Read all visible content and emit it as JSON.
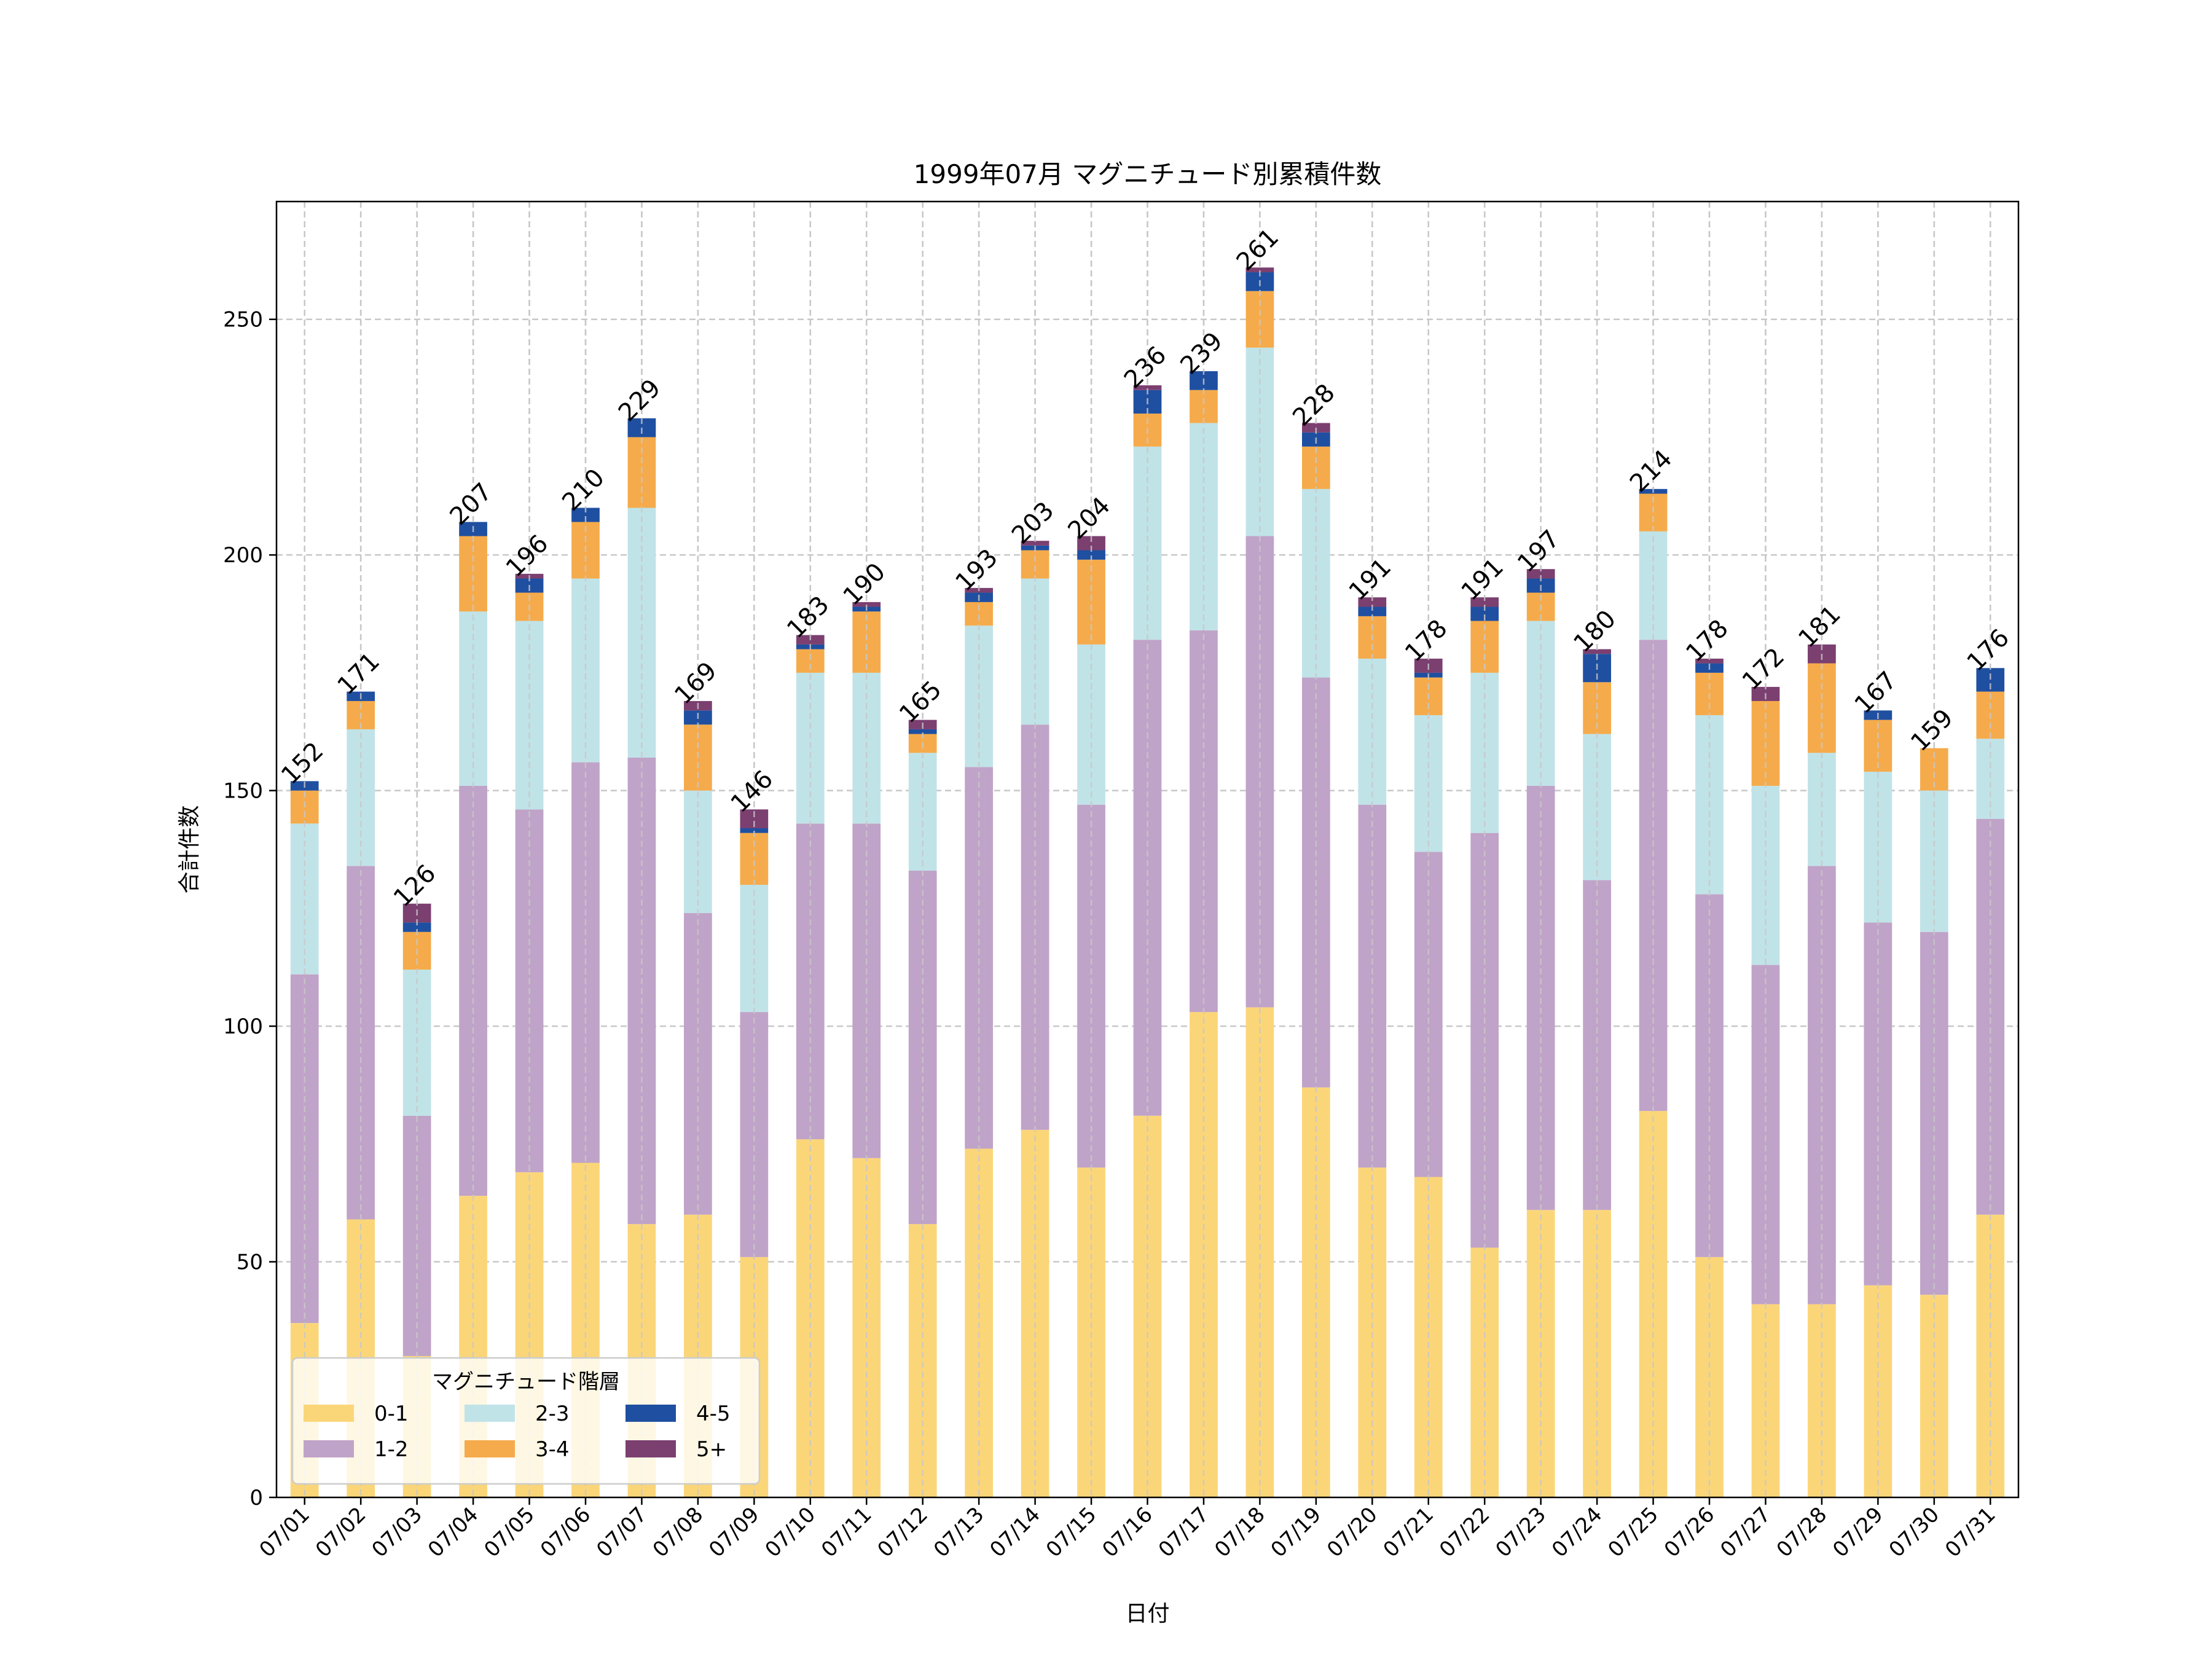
{
  "chart_data": {
    "type": "bar",
    "stacked": true,
    "title": "1999年07月 マグニチュード別累積件数",
    "xlabel": "日付",
    "ylabel": "合計件数",
    "ylim": [
      0,
      275
    ],
    "yticks": [
      0,
      50,
      100,
      150,
      200,
      250
    ],
    "grid": true,
    "legend": {
      "title": "マグニチュード階層",
      "placement": "lower-left",
      "columns": 3
    },
    "categories": [
      "07/01",
      "07/02",
      "07/03",
      "07/04",
      "07/05",
      "07/06",
      "07/07",
      "07/08",
      "07/09",
      "07/10",
      "07/11",
      "07/12",
      "07/13",
      "07/14",
      "07/15",
      "07/16",
      "07/17",
      "07/18",
      "07/19",
      "07/20",
      "07/21",
      "07/22",
      "07/23",
      "07/24",
      "07/25",
      "07/26",
      "07/27",
      "07/28",
      "07/29",
      "07/30",
      "07/31"
    ],
    "totals": [
      152,
      171,
      126,
      207,
      196,
      210,
      229,
      169,
      146,
      183,
      190,
      165,
      193,
      203,
      204,
      236,
      239,
      261,
      228,
      191,
      178,
      191,
      197,
      180,
      214,
      178,
      172,
      181,
      167,
      159,
      176
    ],
    "series": [
      {
        "name": "0-1",
        "color": "#fbd679",
        "values": [
          37,
          59,
          30,
          64,
          69,
          71,
          58,
          60,
          51,
          76,
          72,
          58,
          74,
          78,
          70,
          81,
          103,
          104,
          87,
          70,
          68,
          53,
          61,
          61,
          82,
          51,
          41,
          41,
          45,
          43,
          60
        ]
      },
      {
        "name": "1-2",
        "color": "#c0a3c8",
        "values": [
          74,
          75,
          51,
          87,
          77,
          85,
          99,
          64,
          52,
          67,
          71,
          75,
          81,
          86,
          77,
          101,
          81,
          100,
          87,
          77,
          69,
          88,
          90,
          70,
          100,
          77,
          72,
          93,
          77,
          77,
          84
        ]
      },
      {
        "name": "2-3",
        "color": "#c0e3e8",
        "values": [
          32,
          29,
          31,
          37,
          40,
          39,
          53,
          26,
          27,
          32,
          32,
          25,
          30,
          31,
          34,
          41,
          44,
          40,
          40,
          31,
          29,
          34,
          35,
          31,
          23,
          38,
          38,
          24,
          32,
          30,
          17
        ]
      },
      {
        "name": "3-4",
        "color": "#f5ab4b",
        "values": [
          7,
          6,
          8,
          16,
          6,
          12,
          15,
          14,
          11,
          5,
          13,
          4,
          5,
          6,
          18,
          7,
          7,
          12,
          9,
          9,
          8,
          11,
          6,
          11,
          8,
          9,
          18,
          19,
          11,
          9,
          10
        ]
      },
      {
        "name": "4-5",
        "color": "#1f4fa0",
        "values": [
          2,
          2,
          2,
          3,
          3,
          3,
          4,
          3,
          1,
          1,
          1,
          1,
          2,
          1,
          2,
          5,
          4,
          4,
          3,
          2,
          1,
          3,
          3,
          6,
          1,
          2,
          0,
          0,
          2,
          0,
          5
        ]
      },
      {
        "name": "5+",
        "color": "#7b3f70",
        "values": [
          0,
          0,
          4,
          0,
          1,
          0,
          0,
          2,
          4,
          2,
          1,
          2,
          1,
          1,
          3,
          1,
          0,
          1,
          2,
          2,
          3,
          2,
          2,
          1,
          0,
          1,
          3,
          4,
          0,
          0,
          0
        ]
      }
    ]
  }
}
